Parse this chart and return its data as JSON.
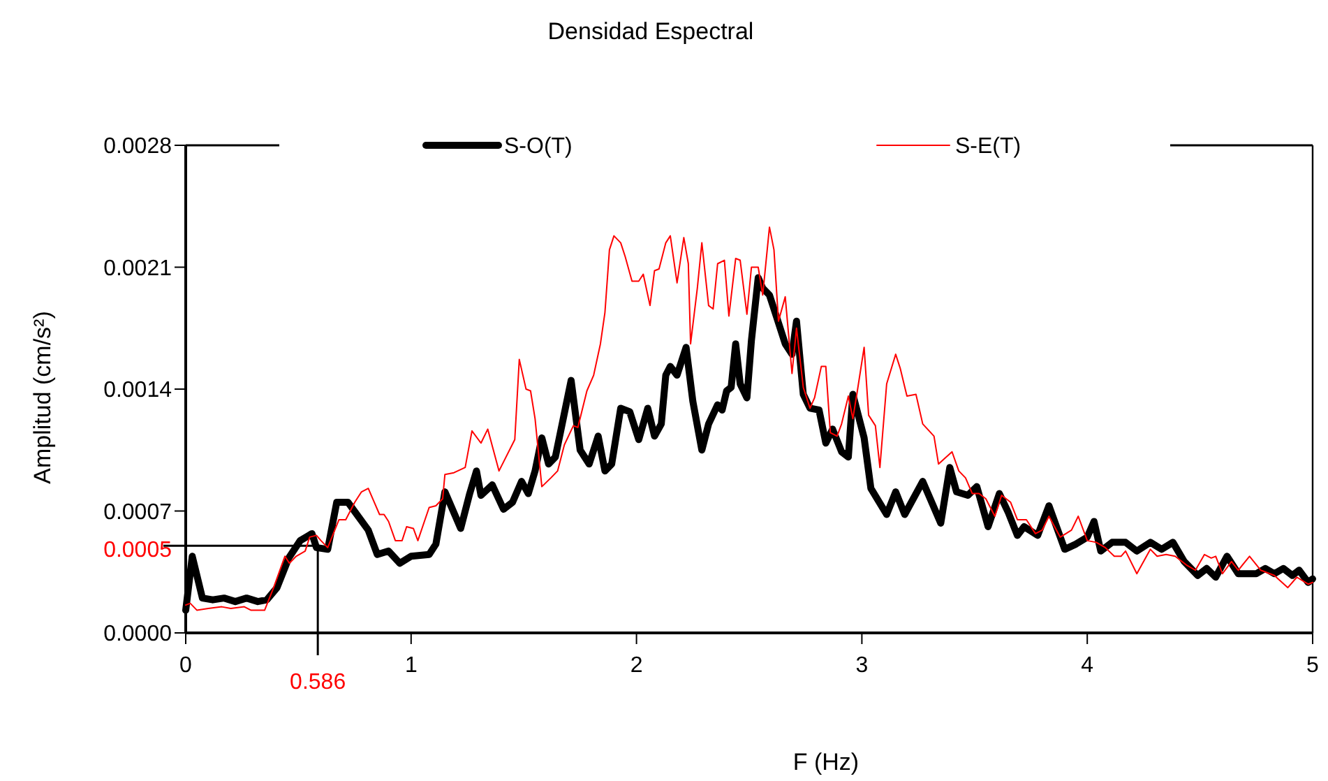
{
  "chart_data": {
    "type": "line",
    "title": "Densidad Espectral",
    "xlabel": "F (Hz)",
    "ylabel": "Amplitud (cm/s²)",
    "xlim": [
      0,
      5
    ],
    "xticks": [
      0,
      1,
      2,
      3,
      4,
      5
    ],
    "ylim": [
      0,
      0.0028
    ],
    "yticks": [
      {
        "value": 0,
        "label": "0.0000"
      },
      0.0007,
      0.0014,
      0.0021,
      0.0028
    ],
    "grid": false,
    "legend": "top",
    "marker": "none",
    "ref_lines": [
      {
        "axis": "y",
        "value": 0.0005,
        "label": "0.0005"
      },
      {
        "axis": "x",
        "value": 0.586,
        "label": "0.586"
      }
    ],
    "series": [
      {
        "name": "S-O(T)",
        "color": "#000000",
        "x": [
          0,
          0.029,
          0.074,
          0.12,
          0.17,
          0.22,
          0.27,
          0.32,
          0.36,
          0.405,
          0.457,
          0.508,
          0.56,
          0.58,
          0.63,
          0.67,
          0.72,
          0.81,
          0.85,
          0.9,
          0.95,
          1.0,
          1.08,
          1.11,
          1.15,
          1.22,
          1.26,
          1.29,
          1.31,
          1.36,
          1.41,
          1.45,
          1.49,
          1.52,
          1.55,
          1.58,
          1.61,
          1.64,
          1.71,
          1.75,
          1.79,
          1.83,
          1.86,
          1.89,
          1.93,
          1.97,
          2.01,
          2.05,
          2.08,
          2.11,
          2.13,
          2.15,
          2.18,
          2.22,
          2.25,
          2.29,
          2.32,
          2.36,
          2.38,
          2.4,
          2.42,
          2.44,
          2.46,
          2.49,
          2.51,
          2.54,
          2.56,
          2.59,
          2.62,
          2.66,
          2.69,
          2.71,
          2.74,
          2.77,
          2.81,
          2.84,
          2.87,
          2.91,
          2.94,
          2.96,
          3.01,
          3.04,
          3.11,
          3.15,
          3.19,
          3.27,
          3.35,
          3.39,
          3.42,
          3.47,
          3.51,
          3.56,
          3.61,
          3.65,
          3.69,
          3.72,
          3.78,
          3.83,
          3.9,
          3.95,
          4.0,
          4.03,
          4.06,
          4.11,
          4.17,
          4.22,
          4.28,
          4.33,
          4.38,
          4.43,
          4.49,
          4.53,
          4.57,
          4.62,
          4.67,
          4.75,
          4.79,
          4.83,
          4.87,
          4.91,
          4.94,
          4.98,
          5.0
        ],
        "values": [
          0.00013,
          0.00044,
          0.0002,
          0.00019,
          0.0002,
          0.00018,
          0.0002,
          0.00018,
          0.00019,
          0.00026,
          0.00043,
          0.00053,
          0.00057,
          0.00049,
          0.00048,
          0.00075,
          0.00075,
          0.00059,
          0.00045,
          0.00047,
          0.0004,
          0.00044,
          0.00045,
          0.00051,
          0.00081,
          0.0006,
          0.0008,
          0.00093,
          0.00079,
          0.00085,
          0.00071,
          0.00075,
          0.00087,
          0.0008,
          0.00093,
          0.00112,
          0.00097,
          0.00101,
          0.00145,
          0.00105,
          0.00097,
          0.00113,
          0.00093,
          0.00097,
          0.00129,
          0.00127,
          0.00111,
          0.00129,
          0.00113,
          0.0012,
          0.00148,
          0.00153,
          0.00148,
          0.00164,
          0.00133,
          0.00105,
          0.0012,
          0.00131,
          0.00128,
          0.00139,
          0.00141,
          0.00166,
          0.00143,
          0.00135,
          0.00168,
          0.00204,
          0.00198,
          0.00194,
          0.00182,
          0.00166,
          0.0016,
          0.00179,
          0.00137,
          0.00129,
          0.00128,
          0.00109,
          0.00117,
          0.00104,
          0.00101,
          0.00137,
          0.00112,
          0.00083,
          0.00068,
          0.00081,
          0.00068,
          0.00087,
          0.00063,
          0.00095,
          0.00081,
          0.00079,
          0.00084,
          0.00061,
          0.0008,
          0.00069,
          0.00056,
          0.00061,
          0.00056,
          0.00073,
          0.00048,
          0.00051,
          0.00055,
          0.00064,
          0.00047,
          0.00052,
          0.00052,
          0.00047,
          0.00052,
          0.00048,
          0.00052,
          0.00041,
          0.00033,
          0.00037,
          0.00032,
          0.00044,
          0.00034,
          0.00034,
          0.00037,
          0.00034,
          0.00037,
          0.00033,
          0.00036,
          0.00029,
          0.00031
        ]
      },
      {
        "name": "S-E(T)",
        "color": "#ff0000",
        "x": [
          0,
          0.02,
          0.05,
          0.1,
          0.16,
          0.2,
          0.26,
          0.29,
          0.35,
          0.39,
          0.44,
          0.46,
          0.49,
          0.53,
          0.55,
          0.58,
          0.6,
          0.63,
          0.68,
          0.71,
          0.75,
          0.78,
          0.81,
          0.83,
          0.86,
          0.88,
          0.9,
          0.93,
          0.96,
          0.98,
          1.01,
          1.03,
          1.08,
          1.11,
          1.14,
          1.15,
          1.19,
          1.24,
          1.27,
          1.31,
          1.34,
          1.39,
          1.46,
          1.48,
          1.51,
          1.53,
          1.55,
          1.58,
          1.62,
          1.65,
          1.68,
          1.72,
          1.74,
          1.78,
          1.81,
          1.84,
          1.86,
          1.88,
          1.9,
          1.93,
          1.95,
          1.98,
          2.01,
          2.03,
          2.06,
          2.08,
          2.1,
          2.13,
          2.15,
          2.18,
          2.21,
          2.23,
          2.24,
          2.27,
          2.29,
          2.32,
          2.34,
          2.36,
          2.39,
          2.41,
          2.44,
          2.46,
          2.49,
          2.51,
          2.54,
          2.56,
          2.59,
          2.61,
          2.63,
          2.66,
          2.69,
          2.71,
          2.74,
          2.77,
          2.79,
          2.82,
          2.84,
          2.86,
          2.89,
          2.91,
          2.94,
          2.96,
          2.98,
          3.01,
          3.03,
          3.06,
          3.08,
          3.11,
          3.15,
          3.17,
          3.2,
          3.24,
          3.27,
          3.32,
          3.34,
          3.4,
          3.43,
          3.46,
          3.49,
          3.52,
          3.55,
          3.59,
          3.62,
          3.66,
          3.69,
          3.73,
          3.77,
          3.8,
          3.83,
          3.88,
          3.93,
          3.96,
          4.0,
          4.04,
          4.08,
          4.12,
          4.15,
          4.17,
          4.22,
          4.28,
          4.31,
          4.35,
          4.39,
          4.44,
          4.48,
          4.52,
          4.55,
          4.57,
          4.6,
          4.64,
          4.67,
          4.72,
          4.77,
          4.83,
          4.89,
          4.93,
          4.98,
          5.0
        ],
        "values": [
          0.00016,
          0.00017,
          0.00013,
          0.00014,
          0.00015,
          0.00014,
          0.00015,
          0.00013,
          0.00013,
          0.00026,
          0.00044,
          0.0004,
          0.00044,
          0.00047,
          0.00055,
          0.00056,
          0.00053,
          0.00049,
          0.00065,
          0.00065,
          0.00075,
          0.00081,
          0.00083,
          0.00077,
          0.00068,
          0.00068,
          0.00064,
          0.00053,
          0.00053,
          0.00061,
          0.0006,
          0.00053,
          0.00072,
          0.00073,
          0.00077,
          0.00091,
          0.00092,
          0.00095,
          0.00116,
          0.00109,
          0.00117,
          0.00093,
          0.00111,
          0.00157,
          0.0014,
          0.00139,
          0.00123,
          0.00084,
          0.00089,
          0.00093,
          0.00108,
          0.00119,
          0.00118,
          0.00139,
          0.00148,
          0.00166,
          0.00184,
          0.0022,
          0.00228,
          0.00224,
          0.00216,
          0.00202,
          0.00202,
          0.00206,
          0.00188,
          0.00208,
          0.00209,
          0.00224,
          0.00228,
          0.00201,
          0.00227,
          0.00212,
          0.00166,
          0.00198,
          0.00224,
          0.00188,
          0.00186,
          0.00212,
          0.00214,
          0.00182,
          0.00215,
          0.00214,
          0.00183,
          0.0021,
          0.0021,
          0.00194,
          0.00233,
          0.0022,
          0.00179,
          0.00193,
          0.00149,
          0.00175,
          0.00141,
          0.00129,
          0.00135,
          0.00153,
          0.00153,
          0.00115,
          0.00113,
          0.0012,
          0.00136,
          0.00123,
          0.00139,
          0.00164,
          0.00125,
          0.00119,
          0.00095,
          0.00143,
          0.0016,
          0.00152,
          0.00136,
          0.00137,
          0.0012,
          0.00113,
          0.00097,
          0.00104,
          0.00093,
          0.00089,
          0.0008,
          0.0008,
          0.00077,
          0.00067,
          0.00079,
          0.00075,
          0.00065,
          0.00065,
          0.00057,
          0.00059,
          0.00067,
          0.00055,
          0.00059,
          0.00067,
          0.00053,
          0.00052,
          0.00049,
          0.00044,
          0.00044,
          0.00047,
          0.00034,
          0.00048,
          0.00044,
          0.00045,
          0.00044,
          0.00039,
          0.00036,
          0.00045,
          0.00043,
          0.00044,
          0.00034,
          0.00041,
          0.00036,
          0.00044,
          0.00036,
          0.00033,
          0.00026,
          0.00032,
          0.00028,
          0.00029
        ]
      }
    ]
  }
}
